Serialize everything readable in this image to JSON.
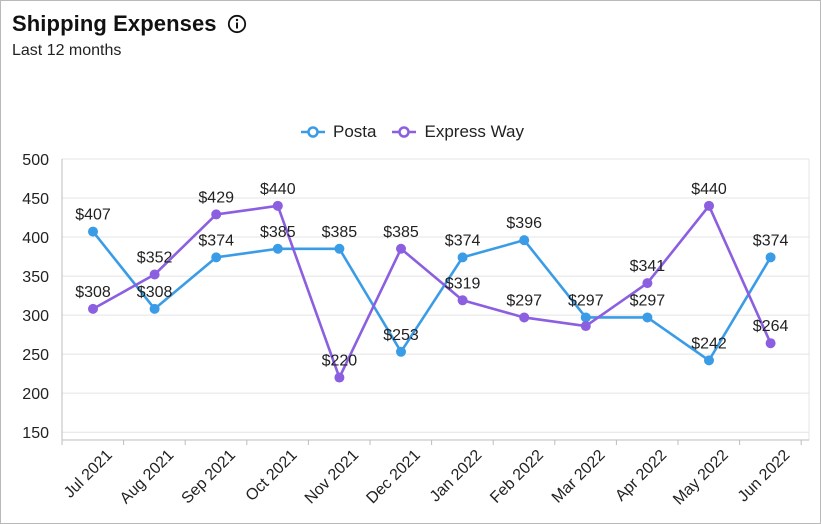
{
  "header": {
    "title": "Shipping Expenses",
    "subtitle": "Last 12 months"
  },
  "colors": {
    "posta": "#3a9ce6",
    "express": "#8b5fe0",
    "grid": "#e4e4e4",
    "axis": "#bdbdbd"
  },
  "chart_data": {
    "type": "line",
    "categories": [
      "Jul 2021",
      "Aug 2021",
      "Sep 2021",
      "Oct 2021",
      "Nov 2021",
      "Dec 2021",
      "Jan 2022",
      "Feb 2022",
      "Mar 2022",
      "Apr 2022",
      "May 2022",
      "Jun 2022"
    ],
    "series": [
      {
        "name": "Posta",
        "values": [
          407,
          308,
          374,
          385,
          385,
          253,
          374,
          396,
          297,
          297,
          242,
          374
        ],
        "labels": [
          "$407",
          "$308",
          "$374",
          "$385",
          "$385",
          "$253",
          "$374",
          "$396",
          "$297",
          "$297",
          "$242",
          "$374"
        ]
      },
      {
        "name": "Express Way",
        "values": [
          308,
          352,
          429,
          440,
          220,
          385,
          319,
          297,
          286,
          341,
          440,
          264
        ],
        "labels": [
          "$308",
          "$352",
          "$429",
          "$440",
          "$220",
          "$385",
          "$319",
          "$297",
          "",
          "$341",
          "$440",
          "$264"
        ]
      }
    ],
    "yticks": [
      150,
      200,
      250,
      300,
      350,
      400,
      450,
      500
    ],
    "ylim": [
      140,
      500
    ],
    "grid": true,
    "legend": "top-center"
  }
}
